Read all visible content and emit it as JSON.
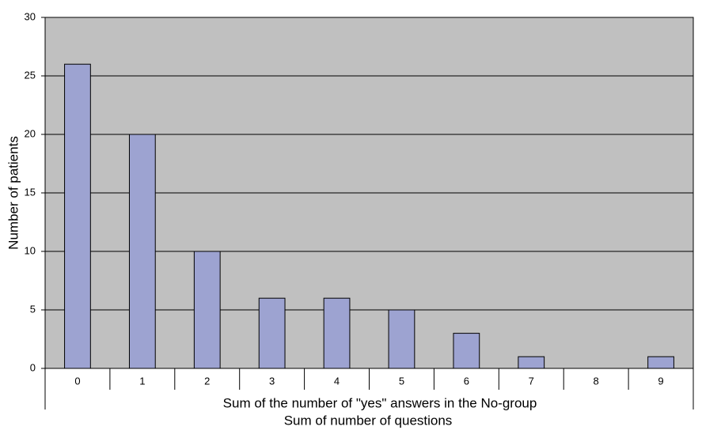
{
  "chart_data": {
    "type": "bar",
    "ylabel": "Number of patients",
    "xlabel": [
      "Sum of the number of \"yes\" answers in the No-group",
      "Sum of number of questions"
    ],
    "categories": [
      "0",
      "1",
      "2",
      "3",
      "4",
      "5",
      "6",
      "7",
      "8",
      "9"
    ],
    "values": [
      26,
      20,
      10,
      6,
      6,
      5,
      3,
      1,
      0,
      1
    ],
    "color": "#9da3d1",
    "ylim": [
      0,
      30
    ],
    "yticks": [
      0,
      5,
      10,
      15,
      20,
      25,
      30
    ],
    "grid": true
  }
}
